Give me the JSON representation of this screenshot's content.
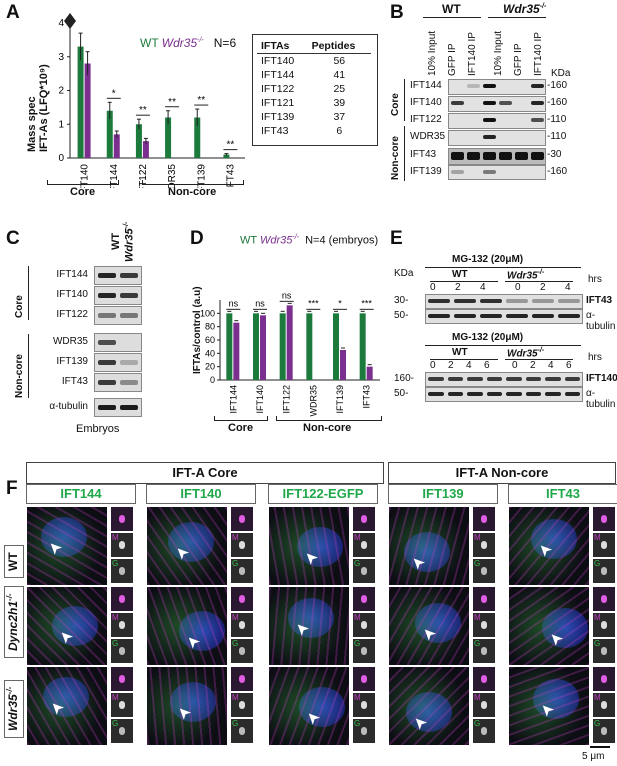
{
  "panels": {
    "A": "A",
    "B": "B",
    "C": "C",
    "D": "D",
    "E": "E",
    "F": "F"
  },
  "colors": {
    "wt": "#1c7a3c",
    "mutant": "#7b2f8e",
    "dapi": "#2a3cd8",
    "magenta": "#c23cc2",
    "green": "#3ec24a"
  },
  "panelA": {
    "ylabel_line1": "Mass spec",
    "ylabel_line2": "IFT-As (LFQ*10⁹)",
    "legend_wt": "WT",
    "legend_mut": "Wdr35",
    "legend_sup": "-/-",
    "n_label": "N=6",
    "group_core": "Core",
    "group_noncore": "Non-core",
    "table_header": [
      "IFTAs",
      "Peptides"
    ],
    "table_rows": [
      [
        "IFT140",
        "56"
      ],
      [
        "IFT144",
        "41"
      ],
      [
        "IFT122",
        "25"
      ],
      [
        "IFT121",
        "39"
      ],
      [
        "IFT139",
        "37"
      ],
      [
        "IFT43",
        "6"
      ]
    ],
    "chart_data": {
      "type": "bar",
      "categories": [
        "IFT140",
        "IFT144",
        "IFT122",
        "WDR35",
        "IFT139",
        "IFT43"
      ],
      "series": [
        {
          "name": "WT",
          "values": [
            3.3,
            1.4,
            1.0,
            1.2,
            1.2,
            0.1
          ]
        },
        {
          "name": "Wdr35-/-",
          "values": [
            2.8,
            0.7,
            0.5,
            0,
            0,
            0
          ]
        }
      ],
      "errors": [
        [
          0.4,
          0.25,
          0.15,
          0.2,
          0.25,
          0.03
        ],
        [
          0.35,
          0.1,
          0.08,
          0,
          0,
          0
        ]
      ],
      "significance": [
        "",
        "*",
        "**",
        "**",
        "**",
        "**"
      ],
      "yticks": [
        0,
        1,
        2,
        3,
        4
      ],
      "ylim": [
        0,
        4
      ]
    }
  },
  "panelB": {
    "wt": "WT",
    "mut": "Wdr35",
    "sup": "-/-",
    "kda": "KDa",
    "lanes": [
      "10% Input",
      "GFP IP",
      "IFT140 IP",
      "10% Input",
      "GFP IP",
      "IFT140 IP"
    ],
    "group_core": "Core",
    "group_noncore": "Non-core",
    "rows": [
      "IFT144",
      "IFT140",
      "IFT122",
      "WDR35",
      "IFT43",
      "IFT139"
    ],
    "markers": [
      "-160",
      "-160",
      "-110",
      "-110",
      "-30",
      "-160"
    ]
  },
  "panelC": {
    "wt": "WT",
    "mut": "Wdr35",
    "sup": "-/-",
    "group_core": "Core",
    "group_noncore": "Non-core",
    "rows": [
      "IFT144",
      "IFT140",
      "IFT122",
      "WDR35",
      "IFT139",
      "IFT43",
      "α-tubulin"
    ],
    "caption": "Embryos"
  },
  "panelD": {
    "legend_wt": "WT",
    "legend_mut": "Wdr35",
    "legend_sup": "-/-",
    "n_label": "N=4 (embryos)",
    "ylabel": "IFTAs/control (a.u)",
    "group_core": "Core",
    "group_noncore": "Non-core",
    "chart_data": {
      "type": "bar",
      "categories": [
        "IFT144",
        "IFT140",
        "IFT122",
        "WDR35",
        "IFT139",
        "IFT43"
      ],
      "series": [
        {
          "name": "WT",
          "values": [
            100,
            100,
            100,
            100,
            100,
            100
          ]
        },
        {
          "name": "Wdr35-/-",
          "values": [
            86,
            97,
            112,
            0,
            45,
            20
          ]
        }
      ],
      "significance": [
        "ns",
        "ns",
        "ns",
        "***",
        "*",
        "***"
      ],
      "yticks": [
        0,
        20,
        40,
        60,
        80,
        100
      ],
      "ylim": [
        0,
        120
      ]
    }
  },
  "panelE": {
    "title": "MG-132 (20μM)",
    "kda": "KDa",
    "hrs": "hrs",
    "wt": "WT",
    "mut": "Wdr35",
    "sup": "-/-",
    "times_top": [
      "0",
      "2",
      "4",
      "0",
      "2",
      "4"
    ],
    "times_bottom": [
      "0",
      "2",
      "4",
      "6",
      "0",
      "2",
      "4",
      "6"
    ],
    "top_rows": [
      "IFT43",
      "α-tubulin"
    ],
    "bottom_rows": [
      "IFT140",
      "α-tubulin"
    ],
    "markers_top": [
      "30-",
      "50-"
    ],
    "markers_bottom": [
      "160-",
      "50-"
    ]
  },
  "panelF": {
    "header_core": "IFT-A Core",
    "header_noncore": "IFT-A Non-core",
    "columns": [
      "IFT144",
      "IFT140",
      "IFT122-EGFP",
      "IFT139",
      "IFT43"
    ],
    "rows": [
      "WT",
      "Dync2h1",
      "Wdr35"
    ],
    "row_sups": [
      "",
      "-/-",
      "-/-"
    ],
    "inset_labels": [
      "M",
      "G"
    ],
    "scale_bar": "5 μm"
  }
}
